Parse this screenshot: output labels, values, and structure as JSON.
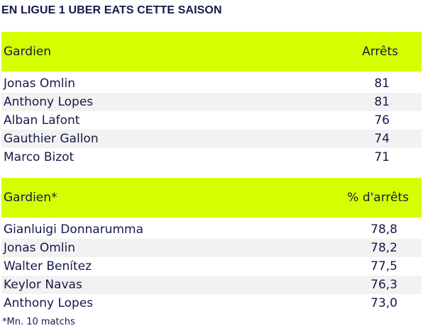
{
  "title": "EN LIGUE 1 UBER EATS CETTE SAISON",
  "colors": {
    "header_bg": "#d4ff00",
    "text": "#141a4a",
    "alt_row": "#f2f2f2"
  },
  "saves_table": {
    "headers": [
      "Gardien",
      "Arrêts"
    ],
    "rows": [
      [
        "Jonas Omlin",
        "81"
      ],
      [
        "Anthony Lopes",
        "81"
      ],
      [
        "Alban Lafont",
        "76"
      ],
      [
        "Gauthier Gallon",
        "74"
      ],
      [
        "Marco Bizot",
        "71"
      ]
    ]
  },
  "pct_table": {
    "headers": [
      "Gardien*",
      "% d'arrêts"
    ],
    "rows": [
      [
        "Gianluigi Donnarumma",
        "78,8"
      ],
      [
        "Jonas Omlin",
        "78,2"
      ],
      [
        "Walter Benítez",
        "77,5"
      ],
      [
        "Keylor Navas",
        "76,3"
      ],
      [
        "Anthony Lopes",
        "73,0"
      ]
    ]
  },
  "footnote": "*Mn. 10 matchs"
}
